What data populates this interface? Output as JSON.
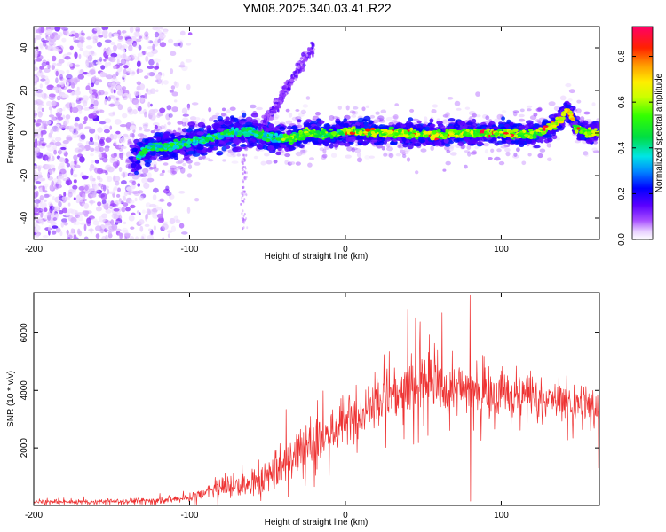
{
  "title": "YM08.2025.340.03.41.R22",
  "chart_data": [
    {
      "type": "heatmap",
      "name": "spectrogram",
      "title": "YM08.2025.340.03.41.R22",
      "xlabel": "Height of straight line (km)",
      "ylabel": "Frequency (Hz)",
      "xlim": [
        -200,
        163
      ],
      "ylim": [
        -50,
        50
      ],
      "x_ticks": [
        -200,
        -100,
        0,
        100
      ],
      "x_tick_labels": [
        "-200",
        "-100",
        "0",
        "100"
      ],
      "y_ticks": [
        -40,
        -20,
        0,
        20,
        40
      ],
      "y_tick_labels": [
        "-40",
        "-20",
        "0",
        "20",
        "40"
      ],
      "colorbar": {
        "label": "Normalized spectral amplitude",
        "range": [
          0,
          0.93
        ],
        "ticks": [
          0.0,
          0.2,
          0.4,
          0.6,
          0.8
        ],
        "tick_labels": [
          "0.0",
          "0.2",
          "0.4",
          "0.6",
          "0.8"
        ]
      },
      "ridge": [
        {
          "x": -135,
          "y": -12
        },
        {
          "x": -125,
          "y": -7
        },
        {
          "x": -110,
          "y": -6
        },
        {
          "x": -90,
          "y": -3
        },
        {
          "x": -75,
          "y": 0
        },
        {
          "x": -60,
          "y": 1
        },
        {
          "x": -50,
          "y": -2
        },
        {
          "x": -35,
          "y": -3
        },
        {
          "x": -25,
          "y": 0
        },
        {
          "x": -10,
          "y": -1
        },
        {
          "x": 0,
          "y": 1
        },
        {
          "x": 20,
          "y": 0
        },
        {
          "x": 40,
          "y": 0
        },
        {
          "x": 60,
          "y": -1
        },
        {
          "x": 80,
          "y": 0
        },
        {
          "x": 100,
          "y": 0
        },
        {
          "x": 120,
          "y": -1
        },
        {
          "x": 130,
          "y": 2
        },
        {
          "x": 138,
          "y": 6
        },
        {
          "x": 143,
          "y": 12
        },
        {
          "x": 148,
          "y": 2
        },
        {
          "x": 155,
          "y": 0
        },
        {
          "x": 163,
          "y": 0
        }
      ],
      "streak": [
        {
          "x": -55,
          "y": 3
        },
        {
          "x": -45,
          "y": 12
        },
        {
          "x": -35,
          "y": 24
        },
        {
          "x": -25,
          "y": 36
        },
        {
          "x": -20,
          "y": 41
        }
      ]
    },
    {
      "type": "line",
      "name": "snr",
      "xlabel": "Height of straight line (km)",
      "ylabel": "SNR (10 * v/v)",
      "xlim": [
        -200,
        163
      ],
      "ylim": [
        0,
        7400
      ],
      "x_ticks": [
        -200,
        -100,
        0,
        100
      ],
      "x_tick_labels": [
        "-200",
        "-100",
        "0",
        "100"
      ],
      "y_ticks": [
        2000,
        4000,
        6000
      ],
      "y_tick_labels": [
        "2000",
        "4000",
        "6000"
      ],
      "color": "#ee3333",
      "envelope": [
        {
          "x": -200,
          "mean": 120,
          "noise": 90
        },
        {
          "x": -160,
          "mean": 130,
          "noise": 100
        },
        {
          "x": -120,
          "mean": 180,
          "noise": 110
        },
        {
          "x": -100,
          "mean": 250,
          "noise": 150
        },
        {
          "x": -90,
          "mean": 450,
          "noise": 280
        },
        {
          "x": -80,
          "mean": 650,
          "noise": 420
        },
        {
          "x": -60,
          "mean": 700,
          "noise": 500
        },
        {
          "x": -50,
          "mean": 1000,
          "noise": 700
        },
        {
          "x": -35,
          "mean": 1700,
          "noise": 1100
        },
        {
          "x": -25,
          "mean": 2100,
          "noise": 1100
        },
        {
          "x": -10,
          "mean": 2500,
          "noise": 1000
        },
        {
          "x": 0,
          "mean": 2900,
          "noise": 1000
        },
        {
          "x": 15,
          "mean": 3500,
          "noise": 1000
        },
        {
          "x": 30,
          "mean": 4000,
          "noise": 1100
        },
        {
          "x": 50,
          "mean": 4200,
          "noise": 1200
        },
        {
          "x": 70,
          "mean": 4100,
          "noise": 1100
        },
        {
          "x": 90,
          "mean": 4000,
          "noise": 1000
        },
        {
          "x": 110,
          "mean": 3800,
          "noise": 800
        },
        {
          "x": 130,
          "mean": 3700,
          "noise": 700
        },
        {
          "x": 150,
          "mean": 3500,
          "noise": 800
        },
        {
          "x": 163,
          "mean": 3300,
          "noise": 900
        }
      ],
      "spikes": [
        {
          "x": 80,
          "y": 7300
        },
        {
          "x": 80.3,
          "y": 150
        },
        {
          "x": 40,
          "y": 6800
        },
        {
          "x": 62,
          "y": 6700
        },
        {
          "x": 45,
          "y": 6500
        },
        {
          "x": 162.5,
          "y": 1300
        }
      ]
    }
  ]
}
